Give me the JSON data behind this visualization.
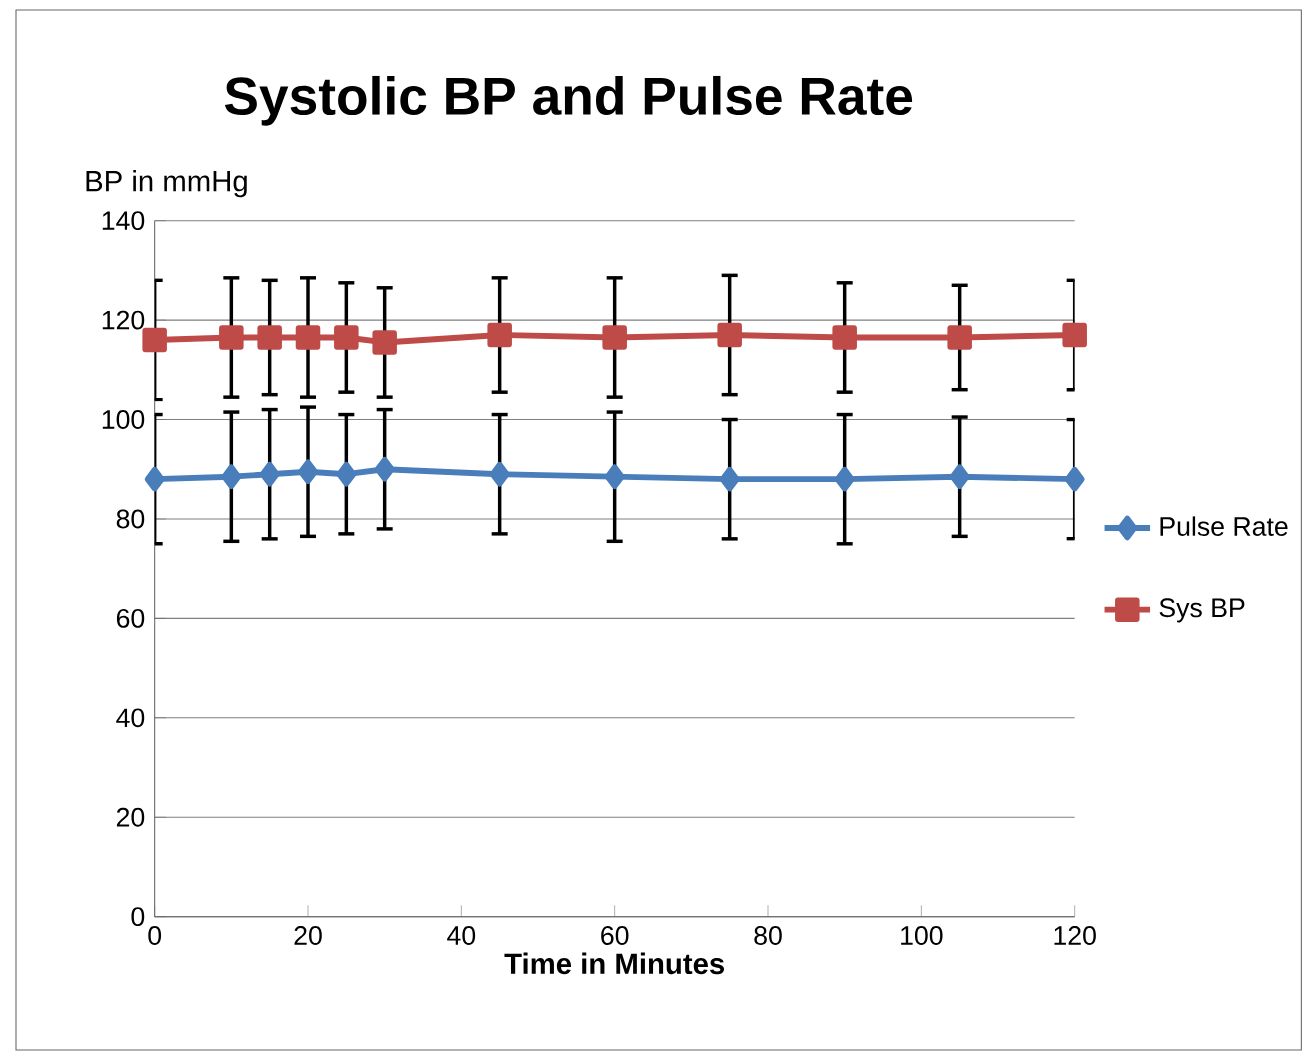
{
  "chart_data": {
    "type": "line",
    "title": "Systolic BP and Pulse Rate",
    "xlabel": "Time in Minutes",
    "ylabel": "BP in mmHg",
    "x": [
      0,
      10,
      15,
      20,
      25,
      30,
      45,
      60,
      75,
      90,
      105,
      120
    ],
    "series": [
      {
        "name": "Pulse Rate",
        "color": "#4a7ebb",
        "marker": "diamond",
        "values": [
          88,
          88.5,
          89,
          89.5,
          89,
          90,
          89,
          88.5,
          88,
          88,
          88.5,
          88
        ],
        "errors": [
          13,
          13,
          13,
          13,
          12,
          12,
          12,
          13,
          12,
          13,
          12,
          12
        ]
      },
      {
        "name": "Sys BP",
        "color": "#be4b48",
        "marker": "square",
        "values": [
          116,
          116.5,
          116.5,
          116.5,
          116.5,
          115.5,
          117,
          116.5,
          117,
          116.5,
          116.5,
          117
        ],
        "errors": [
          12,
          12,
          11.5,
          12,
          11,
          11,
          11.5,
          12,
          12,
          11,
          10.5,
          11
        ]
      }
    ],
    "xlim": [
      0,
      120
    ],
    "xticks": [
      0,
      20,
      40,
      60,
      80,
      100,
      120
    ],
    "ylim": [
      0,
      140
    ],
    "yticks": [
      0,
      20,
      40,
      60,
      80,
      100,
      120,
      140
    ],
    "grid": "y",
    "legend": "right",
    "line_style": "solid"
  }
}
